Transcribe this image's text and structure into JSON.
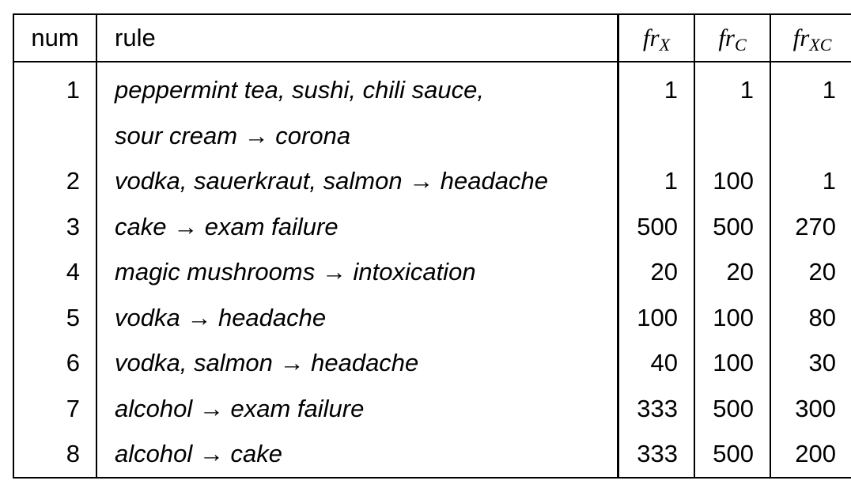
{
  "header": {
    "num": "num",
    "rule": "rule",
    "fr_base": "fr",
    "fr_x_sub": "X",
    "fr_c_sub": "C",
    "fr_xc_sub": "XC"
  },
  "rows": [
    {
      "num": "1",
      "rule_lines": [
        "peppermint tea, sushi, chili sauce,",
        "sour cream → corona"
      ],
      "fr_x": "1",
      "fr_c": "1",
      "fr_xc": "1"
    },
    {
      "num": "2",
      "rule_lines": [
        "vodka, sauerkraut, salmon → headache"
      ],
      "fr_x": "1",
      "fr_c": "100",
      "fr_xc": "1"
    },
    {
      "num": "3",
      "rule_lines": [
        "cake → exam failure"
      ],
      "fr_x": "500",
      "fr_c": "500",
      "fr_xc": "270"
    },
    {
      "num": "4",
      "rule_lines": [
        "magic mushrooms → intoxication"
      ],
      "fr_x": "20",
      "fr_c": "20",
      "fr_xc": "20"
    },
    {
      "num": "5",
      "rule_lines": [
        "vodka → headache"
      ],
      "fr_x": "100",
      "fr_c": "100",
      "fr_xc": "80"
    },
    {
      "num": "6",
      "rule_lines": [
        "vodka, salmon → headache"
      ],
      "fr_x": "40",
      "fr_c": "100",
      "fr_xc": "30"
    },
    {
      "num": "7",
      "rule_lines": [
        "alcohol → exam failure"
      ],
      "fr_x": "333",
      "fr_c": "500",
      "fr_xc": "300"
    },
    {
      "num": "8",
      "rule_lines": [
        "alcohol → cake"
      ],
      "fr_x": "333",
      "fr_c": "500",
      "fr_xc": "200"
    }
  ]
}
